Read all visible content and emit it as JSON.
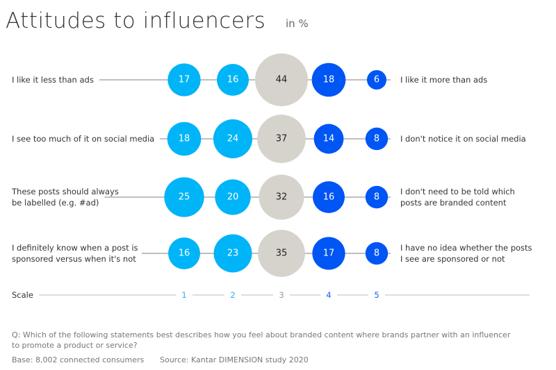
{
  "chart_data": {
    "type": "bubble",
    "title": "Attitudes to influencers",
    "unit": "in %",
    "scale_label": "Scale",
    "scale": [
      "1",
      "2",
      "3",
      "4",
      "5"
    ],
    "colors": {
      "1": "#00b4f8",
      "2": "#00b4f8",
      "3": "#d6d3cc",
      "4": "#0055f5",
      "5": "#0055f5"
    },
    "scale_colors": [
      "#2aaef0",
      "#2aaef0",
      "#999999",
      "#1a5ff0",
      "#1a5ff0"
    ],
    "rows": [
      {
        "left": [
          "I like it less than ads"
        ],
        "right": [
          "I like it more than ads"
        ],
        "values": [
          17,
          16,
          44,
          18,
          6
        ]
      },
      {
        "left": [
          "I see too much of it on social media"
        ],
        "right": [
          "I don't notice it on social media"
        ],
        "values": [
          18,
          24,
          37,
          14,
          8
        ]
      },
      {
        "left": [
          "These posts should always",
          "be labelled (e.g. #ad)"
        ],
        "right": [
          "I don't need to be told which",
          "posts are branded content"
        ],
        "values": [
          25,
          20,
          32,
          16,
          8
        ]
      },
      {
        "left": [
          "I definitely know when a post is",
          "sponsored versus when it's not"
        ],
        "right": [
          "I have no idea whether the posts",
          "I see are sponsored or not"
        ],
        "values": [
          16,
          23,
          35,
          17,
          8
        ]
      }
    ]
  },
  "footer": {
    "question": [
      "Q: Which of the following statements best describes how you feel about branded content where brands partner with an influencer",
      "to promote a product or service?"
    ],
    "base": "Base: 8,002 connected consumers",
    "source": "Source: Kantar DIMENSION study 2020"
  }
}
